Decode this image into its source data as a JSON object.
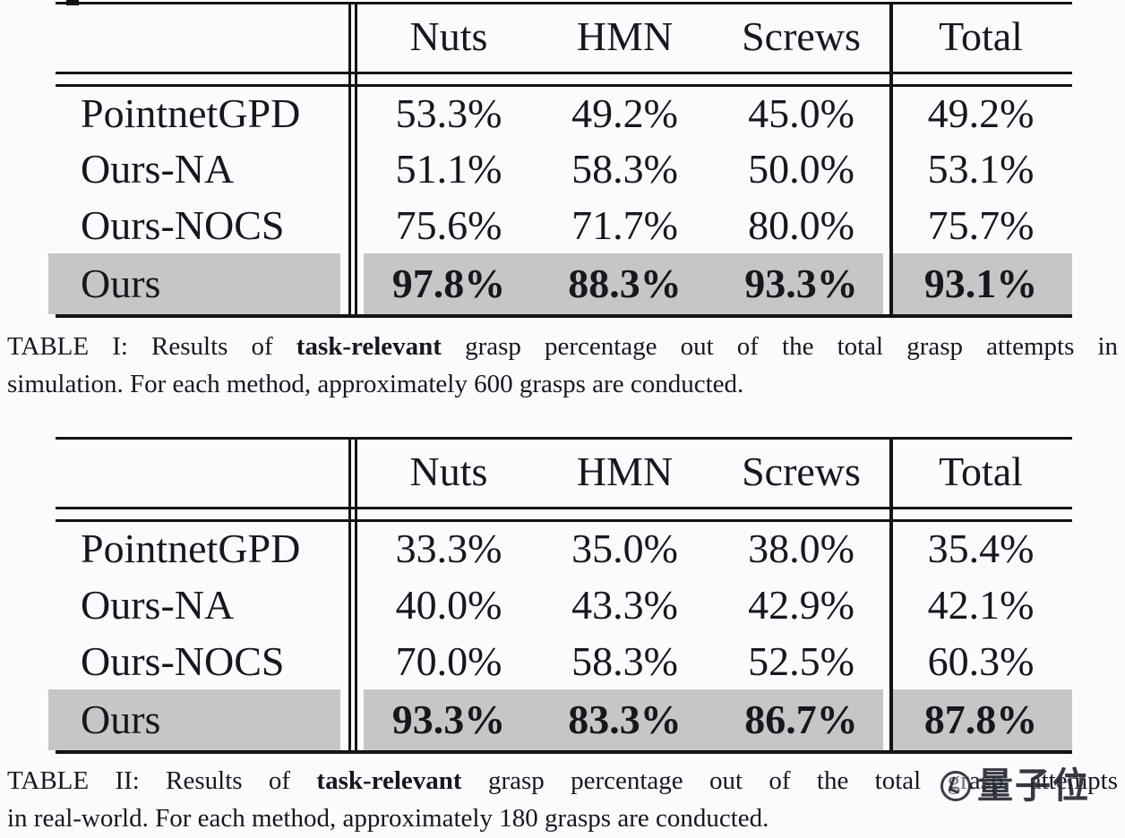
{
  "page": {
    "background": "#fbfbfd",
    "ink": "#171720",
    "rule_color": "#141414",
    "highlight_color": "#c6c6c6"
  },
  "tables": [
    {
      "name": "simulation-results",
      "columns": [
        "Nuts",
        "HMN",
        "Screws",
        "Total"
      ],
      "rows": [
        {
          "label": "PointnetGPD",
          "values": [
            "53.3%",
            "49.2%",
            "45.0%",
            "49.2%"
          ],
          "highlighted": false
        },
        {
          "label": "Ours-NA",
          "values": [
            "51.1%",
            "58.3%",
            "50.0%",
            "53.1%"
          ],
          "highlighted": false
        },
        {
          "label": "Ours-NOCS",
          "values": [
            "75.6%",
            "71.7%",
            "80.0%",
            "75.7%"
          ],
          "highlighted": false
        },
        {
          "label": "Ours",
          "values": [
            "97.8%",
            "88.3%",
            "93.3%",
            "93.1%"
          ],
          "highlighted": true
        }
      ],
      "caption": {
        "line1_pre": "TABLE I: Results of",
        "line1_bold": "task-relevant",
        "line1_post": "grasp percentage out of the total grasp attempts in",
        "line2": "simulation. For each method, approximately 600 grasps are conducted."
      }
    },
    {
      "name": "realworld-results",
      "columns": [
        "Nuts",
        "HMN",
        "Screws",
        "Total"
      ],
      "rows": [
        {
          "label": "PointnetGPD",
          "values": [
            "33.3%",
            "35.0%",
            "38.0%",
            "35.4%"
          ],
          "highlighted": false
        },
        {
          "label": "Ours-NA",
          "values": [
            "40.0%",
            "43.3%",
            "42.9%",
            "42.1%"
          ],
          "highlighted": false
        },
        {
          "label": "Ours-NOCS",
          "values": [
            "70.0%",
            "58.3%",
            "52.5%",
            "60.3%"
          ],
          "highlighted": false
        },
        {
          "label": "Ours",
          "values": [
            "93.3%",
            "83.3%",
            "86.7%",
            "87.8%"
          ],
          "highlighted": true
        }
      ],
      "caption": {
        "line1_pre": "TABLE II: Results of",
        "line1_bold": "task-relevant",
        "line1_post": "grasp percentage out of the total grasp attempts",
        "line2": "in real-world. For each method, approximately 180 grasps are conducted."
      }
    }
  ],
  "watermark": {
    "text": "量子位"
  }
}
